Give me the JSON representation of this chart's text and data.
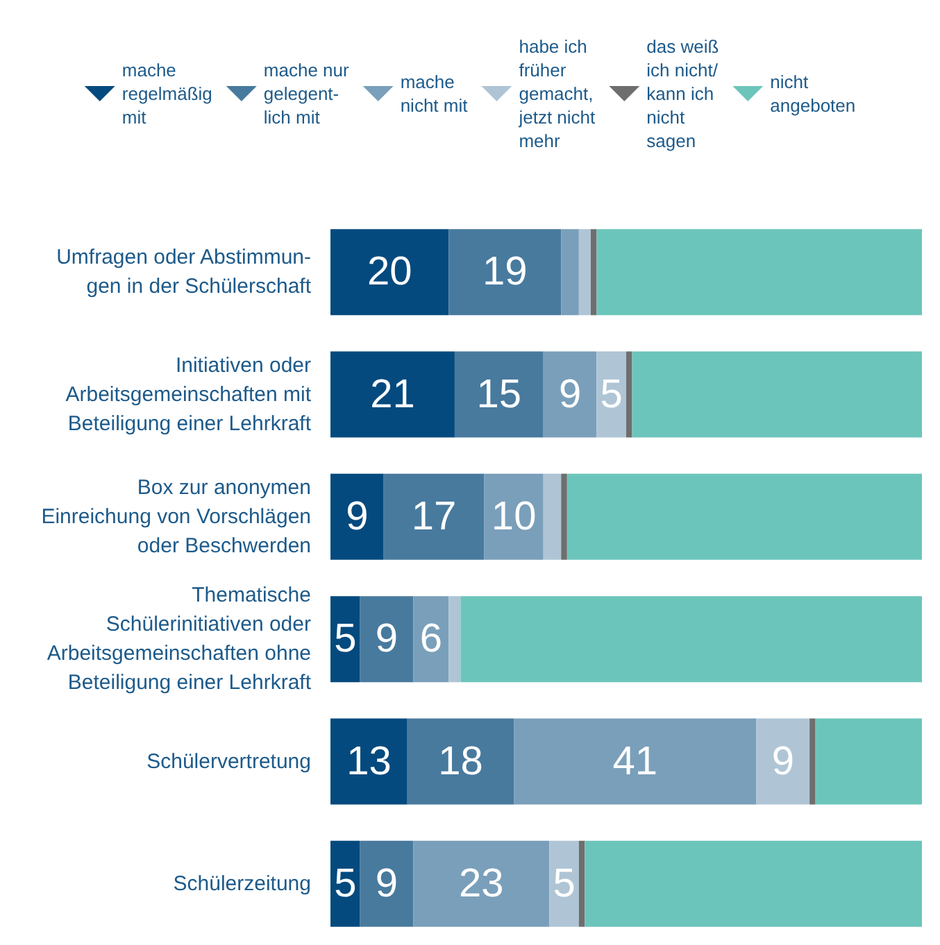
{
  "chart_data": {
    "type": "bar",
    "orientation": "horizontal",
    "stacked": true,
    "legend": "top",
    "tick_labels": "y",
    "xlim": [
      0,
      100
    ],
    "categories": [
      "Umfragen oder Abstimmun-\ngen in der Schülerschaft",
      "Initiativen oder\nArbeitsgemeinschaften mit\nBeteiligung einer Lehrkraft",
      "Box zur anonymen\nEinreichung von Vorschlägen\noder Beschwerden",
      "Thematische\nSchülerinitiativen oder\nArbeitsgemeinschaften ohne\nBeteiligung einer Lehrkraft",
      "Schülervertretung",
      "Schülerzeitung"
    ],
    "series": [
      {
        "name": "mache\nregelmäßig\nmit",
        "color": "#044a7e",
        "values": [
          20,
          21,
          9,
          5,
          13,
          5
        ],
        "value_labels": [
          "20",
          "21",
          "9",
          "5",
          "13",
          "5"
        ]
      },
      {
        "name": "mache nur\ngelegent-\nlich mit",
        "color": "#487a9e",
        "values": [
          19,
          15,
          17,
          9,
          18,
          9
        ],
        "value_labels": [
          "19",
          "15",
          "17",
          "9",
          "18",
          "9"
        ]
      },
      {
        "name": "mache\nnicht mit",
        "color": "#7a9fba",
        "values": [
          3,
          9,
          10,
          6,
          41,
          23
        ],
        "value_labels": [
          null,
          "9",
          "10",
          "6",
          "41",
          "23"
        ]
      },
      {
        "name": "habe ich\nfrüher\ngemacht,\njetzt nicht\nmehr",
        "color": "#afc5d5",
        "values": [
          2,
          5,
          3,
          2,
          9,
          5
        ],
        "value_labels": [
          null,
          "5",
          null,
          null,
          "9",
          "5"
        ]
      },
      {
        "name": "das weiß\nich nicht/\nkann ich\nnicht\nsagen",
        "color": "#6e6e6e",
        "values": [
          1,
          1,
          1,
          0,
          1,
          1
        ]
      },
      {
        "name": "nicht\nangeboten",
        "color": "#6cc5bb",
        "values": [
          55,
          49,
          60,
          78,
          18,
          57
        ]
      }
    ]
  }
}
